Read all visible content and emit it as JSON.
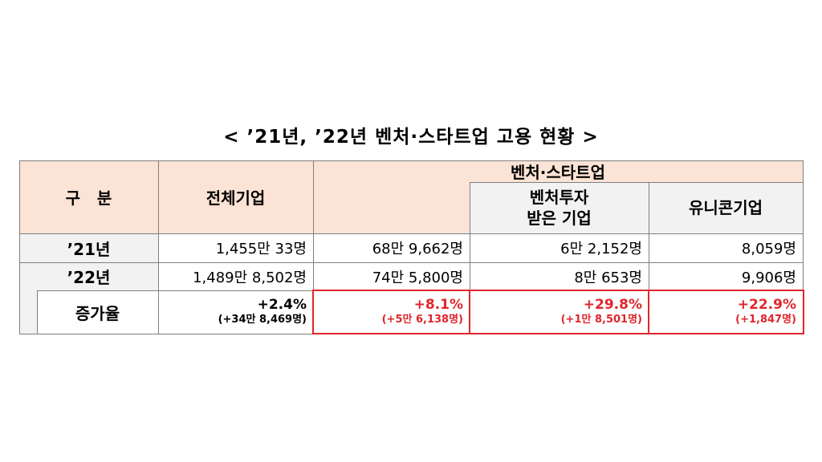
{
  "title": "< ’21년, ’22년 벤처·스타트업 고용 현황 >",
  "table": {
    "header": {
      "category": "구   분",
      "all": "전체기업",
      "venture": "벤처·스타트업",
      "invested": "벤처투자\n받은 기업",
      "unicorn": "유니콘기업"
    },
    "rows": [
      {
        "label": "’21년",
        "all": "1,455만 33명",
        "venture": "68만 9,662명",
        "invested": "6만 2,152명",
        "unicorn": "8,059명"
      },
      {
        "label": "’22년",
        "all": "1,489만 8,502명",
        "venture": "74만 5,800명",
        "invested": "8만 653명",
        "unicorn": "9,906명"
      }
    ],
    "growth": {
      "label": "증가율",
      "all": {
        "pct": "+2.4%",
        "abs": "(+34만 8,469명)"
      },
      "venture": {
        "pct": "+8.1%",
        "abs": "(+5만 6,138명)"
      },
      "invested": {
        "pct": "+29.8%",
        "abs": "(+1만 8,501명)"
      },
      "unicorn": {
        "pct": "+22.9%",
        "abs": "(+1,847명)"
      }
    }
  },
  "colors": {
    "header_bg": "#fbe3d5",
    "subheader_bg": "#f2f2f2",
    "highlight": "#e0262b"
  }
}
